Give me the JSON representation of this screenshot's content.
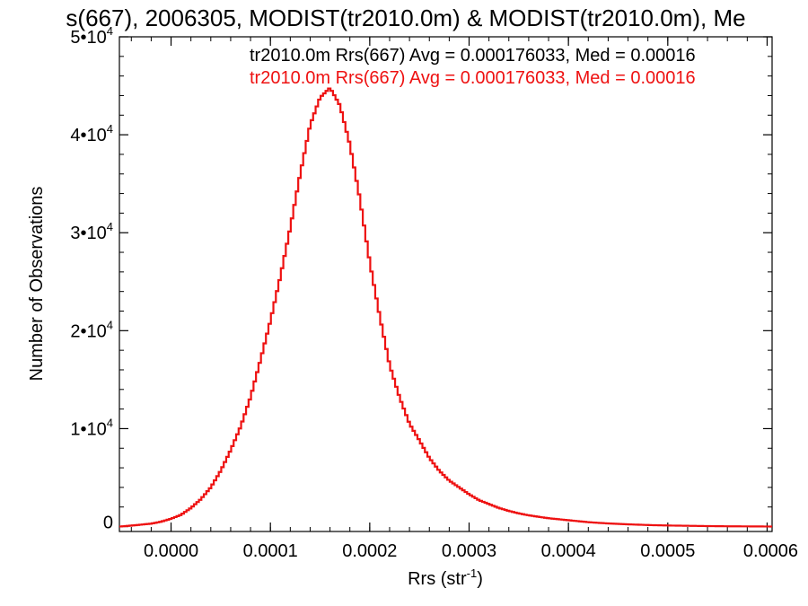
{
  "chart_data": {
    "type": "histogram",
    "title": "s(667), 2006305, MODIST(tr2010.0m) & MODIST(tr2010.0m), Me",
    "xlabel": "Rrs (str",
    "xlabel_sup": "-1",
    "xlabel_close": ")",
    "ylabel": "Number of Observations",
    "xlim": [
      -5.2e-05,
      0.000605
    ],
    "ylim": [
      -500,
      50000
    ],
    "x_ticks": [
      {
        "value": 0.0,
        "label": "0.0000"
      },
      {
        "value": 0.0001,
        "label": "0.0001"
      },
      {
        "value": 0.0002,
        "label": "0.0002"
      },
      {
        "value": 0.0003,
        "label": "0.0003"
      },
      {
        "value": 0.0004,
        "label": "0.0004"
      },
      {
        "value": 0.0005,
        "label": "0.0005"
      },
      {
        "value": 0.0006,
        "label": "0.0006"
      }
    ],
    "y_ticks": [
      {
        "value": 0,
        "label": "0",
        "exp": ""
      },
      {
        "value": 10000,
        "label": "1•10",
        "exp": "4"
      },
      {
        "value": 20000,
        "label": "2•10",
        "exp": "4"
      },
      {
        "value": 30000,
        "label": "3•10",
        "exp": "4"
      },
      {
        "value": 40000,
        "label": "4•10",
        "exp": "4"
      },
      {
        "value": 50000,
        "label": "5•10",
        "exp": "4"
      }
    ],
    "legend": [
      {
        "text": "tr2010.0m Rrs(667) Avg = 0.000176033, Med = 0.00016",
        "color": "#000000"
      },
      {
        "text": "tr2010.0m Rrs(667) Avg = 0.000176033, Med = 0.00016",
        "color": "#ee1111"
      }
    ],
    "series": [
      {
        "color": "#ee1111",
        "peak": {
          "x": 0.00016,
          "y": 44800
        },
        "points": [
          [
            -5.2e-05,
            0
          ],
          [
            -4e-05,
            100
          ],
          [
            -3e-05,
            200
          ],
          [
            -2e-05,
            300
          ],
          [
            -1e-05,
            500
          ],
          [
            0.0,
            800
          ],
          [
            1e-05,
            1200
          ],
          [
            2e-05,
            1900
          ],
          [
            3e-05,
            2800
          ],
          [
            4e-05,
            4000
          ],
          [
            5e-05,
            5700
          ],
          [
            6e-05,
            7800
          ],
          [
            7e-05,
            10200
          ],
          [
            8e-05,
            13200
          ],
          [
            9e-05,
            17000
          ],
          [
            0.0001,
            21000
          ],
          [
            0.00011,
            25500
          ],
          [
            0.00012,
            30500
          ],
          [
            0.00013,
            36000
          ],
          [
            0.00014,
            41000
          ],
          [
            0.00015,
            43800
          ],
          [
            0.00016,
            44800
          ],
          [
            0.00017,
            43000
          ],
          [
            0.00018,
            39000
          ],
          [
            0.00019,
            33500
          ],
          [
            0.0002,
            27000
          ],
          [
            0.00021,
            21500
          ],
          [
            0.00022,
            16500
          ],
          [
            0.00023,
            13200
          ],
          [
            0.00024,
            10500
          ],
          [
            0.00025,
            8800
          ],
          [
            0.00026,
            7000
          ],
          [
            0.00027,
            5700
          ],
          [
            0.00028,
            4700
          ],
          [
            0.00029,
            4000
          ],
          [
            0.0003,
            3300
          ],
          [
            0.00031,
            2700
          ],
          [
            0.00032,
            2300
          ],
          [
            0.00033,
            1900
          ],
          [
            0.00034,
            1600
          ],
          [
            0.00035,
            1350
          ],
          [
            0.00036,
            1150
          ],
          [
            0.00037,
            1000
          ],
          [
            0.00038,
            850
          ],
          [
            0.00039,
            750
          ],
          [
            0.0004,
            650
          ],
          [
            0.00042,
            450
          ],
          [
            0.00044,
            320
          ],
          [
            0.00046,
            230
          ],
          [
            0.00048,
            160
          ],
          [
            0.0005,
            110
          ],
          [
            0.00052,
            80
          ],
          [
            0.00054,
            50
          ],
          [
            0.00056,
            30
          ],
          [
            0.00058,
            20
          ],
          [
            0.0006,
            10
          ],
          [
            0.000605,
            5
          ]
        ]
      }
    ]
  }
}
